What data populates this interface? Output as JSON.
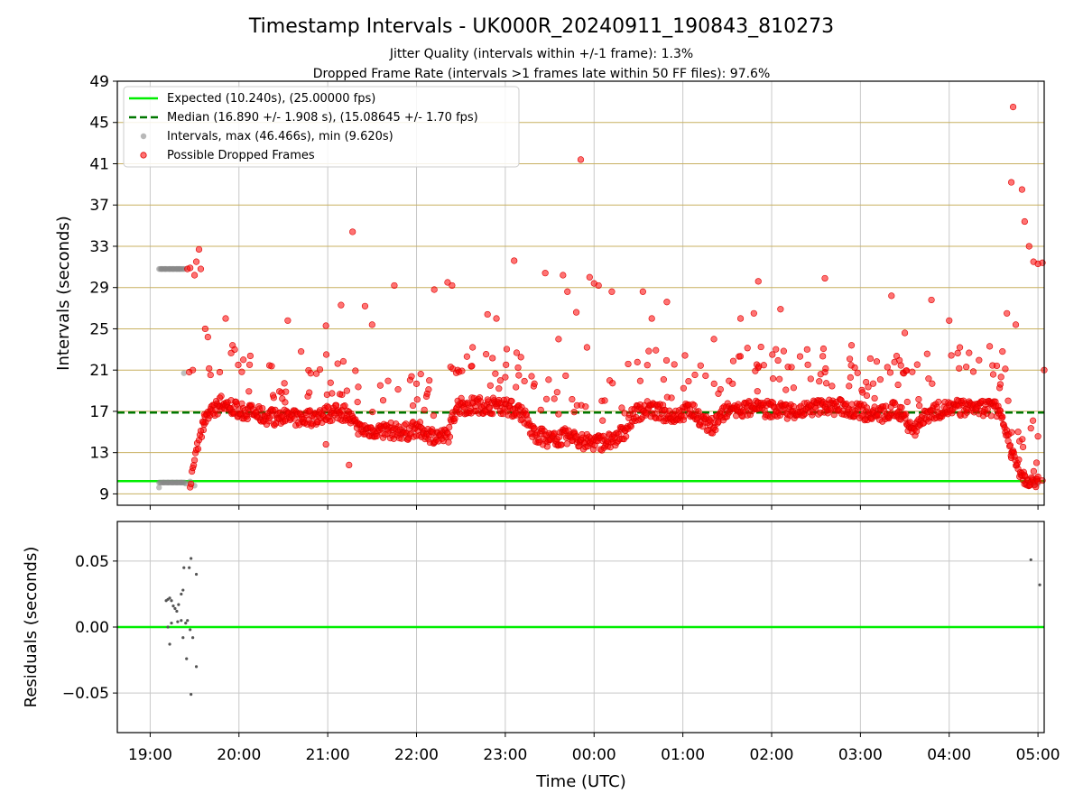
{
  "figure": {
    "title": "Timestamp Intervals - UK000R_20240911_190843_810273",
    "subtitle_1": "Jitter Quality (intervals within +/-1 frame): 1.3%",
    "subtitle_2": "Dropped Frame Rate (intervals >1 frames late within 50 FF files): 97.6%",
    "xlabel": "Time (UTC)",
    "x_ticks": [
      "19:00",
      "20:00",
      "21:00",
      "22:00",
      "23:00",
      "00:00",
      "01:00",
      "02:00",
      "03:00",
      "04:00",
      "05:00"
    ]
  },
  "colors": {
    "expected": "#00ee00",
    "median": "#007700",
    "intervals": "#888888",
    "dropped": "#ff0000",
    "hgrid_top": "#c8b060",
    "grid": "#c8c8c8"
  },
  "chart_data": [
    {
      "type": "scatter",
      "name": "top-panel",
      "ylabel": "Intervals (seconds)",
      "ylim": [
        7.9,
        49
      ],
      "xlim_hours": [
        18.63,
        29.07
      ],
      "y_ticks": [
        "9",
        "13",
        "17",
        "21",
        "25",
        "29",
        "33",
        "37",
        "41",
        "45",
        "49"
      ],
      "grid": true,
      "legend_position": "top-left",
      "legend": [
        "Expected (10.240s), (25.00000 fps)",
        "Median (16.890 +/- 1.908 s), (15.08645 +/- 1.70 fps)",
        "Intervals, max (46.466s), min (9.620s)",
        "Possible Dropped Frames"
      ],
      "expected_y": 10.24,
      "median_y": 16.89,
      "series_notes": "x in hours UTC from 19:00 of the first day (24 = 00:00 next day); y in seconds",
      "intervals_gray": [
        [
          19.1,
          9.62
        ],
        [
          19.15,
          10.1
        ],
        [
          19.2,
          10.1
        ],
        [
          19.25,
          10.1
        ],
        [
          19.3,
          10.1
        ],
        [
          19.35,
          10.1
        ],
        [
          19.4,
          10.0
        ],
        [
          19.45,
          10.2
        ],
        [
          19.5,
          9.8
        ],
        [
          19.13,
          30.8
        ],
        [
          19.17,
          30.8
        ],
        [
          19.22,
          30.8
        ],
        [
          19.26,
          30.8
        ],
        [
          19.3,
          30.8
        ],
        [
          19.33,
          30.8
        ],
        [
          19.38,
          20.7
        ],
        [
          29.0,
          10.0
        ],
        [
          28.98,
          9.9
        ]
      ],
      "dropped_anchor_points": [
        [
          19.42,
          30.8
        ],
        [
          19.45,
          30.9
        ],
        [
          19.5,
          30.2
        ],
        [
          19.52,
          31.5
        ],
        [
          19.55,
          32.7
        ],
        [
          19.57,
          30.8
        ],
        [
          19.62,
          25.0
        ],
        [
          19.65,
          24.2
        ],
        [
          19.44,
          20.8
        ],
        [
          19.48,
          21.0
        ],
        [
          19.85,
          26.0
        ],
        [
          20.05,
          22.0
        ],
        [
          20.55,
          25.8
        ],
        [
          20.7,
          22.8
        ],
        [
          20.98,
          25.3
        ],
        [
          21.15,
          27.3
        ],
        [
          21.28,
          34.4
        ],
        [
          21.5,
          25.4
        ],
        [
          21.42,
          27.2
        ],
        [
          21.75,
          29.2
        ],
        [
          21.24,
          11.8
        ],
        [
          20.98,
          13.8
        ],
        [
          22.2,
          28.8
        ],
        [
          22.35,
          29.5
        ],
        [
          22.4,
          29.2
        ],
        [
          22.8,
          26.4
        ],
        [
          22.9,
          26.0
        ],
        [
          23.1,
          31.6
        ],
        [
          23.45,
          30.4
        ],
        [
          23.6,
          24.0
        ],
        [
          23.65,
          30.2
        ],
        [
          23.7,
          28.6
        ],
        [
          23.8,
          26.6
        ],
        [
          23.85,
          41.4
        ],
        [
          23.95,
          30.0
        ],
        [
          24.0,
          29.4
        ],
        [
          24.05,
          29.2
        ],
        [
          23.92,
          23.2
        ],
        [
          24.2,
          28.6
        ],
        [
          24.55,
          28.6
        ],
        [
          24.65,
          26.0
        ],
        [
          24.82,
          27.6
        ],
        [
          25.35,
          24.0
        ],
        [
          25.65,
          26.0
        ],
        [
          25.8,
          26.5
        ],
        [
          25.85,
          29.6
        ],
        [
          26.1,
          26.9
        ],
        [
          26.6,
          29.9
        ],
        [
          26.4,
          23.0
        ],
        [
          26.9,
          23.4
        ],
        [
          27.35,
          28.2
        ],
        [
          27.5,
          24.6
        ],
        [
          27.8,
          27.8
        ],
        [
          28.0,
          25.8
        ],
        [
          28.6,
          22.8
        ],
        [
          28.7,
          39.2
        ],
        [
          28.72,
          46.5
        ],
        [
          28.82,
          38.5
        ],
        [
          28.85,
          35.4
        ],
        [
          28.9,
          33.0
        ],
        [
          28.95,
          31.5
        ],
        [
          29.0,
          31.3
        ],
        [
          29.05,
          31.4
        ],
        [
          28.75,
          25.4
        ],
        [
          28.65,
          26.5
        ],
        [
          28.7,
          12.5
        ],
        [
          28.85,
          10.8
        ],
        [
          29.0,
          10.2
        ],
        [
          29.05,
          10.3
        ],
        [
          29.07,
          21.0
        ]
      ],
      "dropped_baseline": [
        [
          19.6,
          16.0
        ],
        [
          19.8,
          17.8
        ],
        [
          20.0,
          17.2
        ],
        [
          20.3,
          16.5
        ],
        [
          20.6,
          16.3
        ],
        [
          20.9,
          16.4
        ],
        [
          21.0,
          16.8
        ],
        [
          21.2,
          16.9
        ],
        [
          21.35,
          15.2
        ],
        [
          21.6,
          15.2
        ],
        [
          21.9,
          15.0
        ],
        [
          22.0,
          15.4
        ],
        [
          22.1,
          14.8
        ],
        [
          22.35,
          14.5
        ],
        [
          22.45,
          17.5
        ],
        [
          22.7,
          17.6
        ],
        [
          23.0,
          17.5
        ],
        [
          23.2,
          16.8
        ],
        [
          23.3,
          15.0
        ],
        [
          23.5,
          14.2
        ],
        [
          23.7,
          14.6
        ],
        [
          23.9,
          14.0
        ],
        [
          24.1,
          14.0
        ],
        [
          24.25,
          14.3
        ],
        [
          24.35,
          15.2
        ],
        [
          24.45,
          16.8
        ],
        [
          24.6,
          17.2
        ],
        [
          24.9,
          16.6
        ],
        [
          25.1,
          17.2
        ],
        [
          25.3,
          15.4
        ],
        [
          25.5,
          17.0
        ],
        [
          25.8,
          17.3
        ],
        [
          26.0,
          17.2
        ],
        [
          26.3,
          17.0
        ],
        [
          26.5,
          17.4
        ],
        [
          26.8,
          17.4
        ],
        [
          27.0,
          17.0
        ],
        [
          27.2,
          16.6
        ],
        [
          27.4,
          17.2
        ],
        [
          27.6,
          15.3
        ],
        [
          27.8,
          17.0
        ],
        [
          28.0,
          17.3
        ],
        [
          28.3,
          17.4
        ],
        [
          28.55,
          17.3
        ],
        [
          28.62,
          16.0
        ],
        [
          28.68,
          13.8
        ],
        [
          28.75,
          12.0
        ],
        [
          28.85,
          10.6
        ],
        [
          29.0,
          10.3
        ]
      ]
    },
    {
      "type": "scatter",
      "name": "bottom-panel",
      "ylabel": "Residuals (seconds)",
      "ylim": [
        -0.08,
        0.08
      ],
      "y_ticks": [
        "−0.05",
        "0.00",
        "0.05"
      ],
      "grid": true,
      "zero_line": 0.0,
      "residuals": [
        [
          19.18,
          0.02
        ],
        [
          19.2,
          0.021
        ],
        [
          19.22,
          0.022
        ],
        [
          19.24,
          0.02
        ],
        [
          19.26,
          0.016
        ],
        [
          19.28,
          0.014
        ],
        [
          19.3,
          0.012
        ],
        [
          19.32,
          0.017
        ],
        [
          19.2,
          0.0
        ],
        [
          19.24,
          0.003
        ],
        [
          19.31,
          0.004
        ],
        [
          19.22,
          -0.013
        ],
        [
          19.35,
          0.025
        ],
        [
          19.37,
          0.028
        ],
        [
          19.38,
          0.045
        ],
        [
          19.44,
          0.045
        ],
        [
          19.46,
          0.052
        ],
        [
          19.52,
          0.04
        ],
        [
          19.35,
          0.005
        ],
        [
          19.4,
          0.003
        ],
        [
          19.42,
          0.005
        ],
        [
          19.45,
          -0.002
        ],
        [
          19.48,
          -0.008
        ],
        [
          19.37,
          -0.008
        ],
        [
          19.41,
          -0.024
        ],
        [
          19.52,
          -0.03
        ],
        [
          19.46,
          -0.051
        ],
        [
          28.92,
          0.051
        ],
        [
          29.02,
          0.032
        ]
      ]
    }
  ]
}
